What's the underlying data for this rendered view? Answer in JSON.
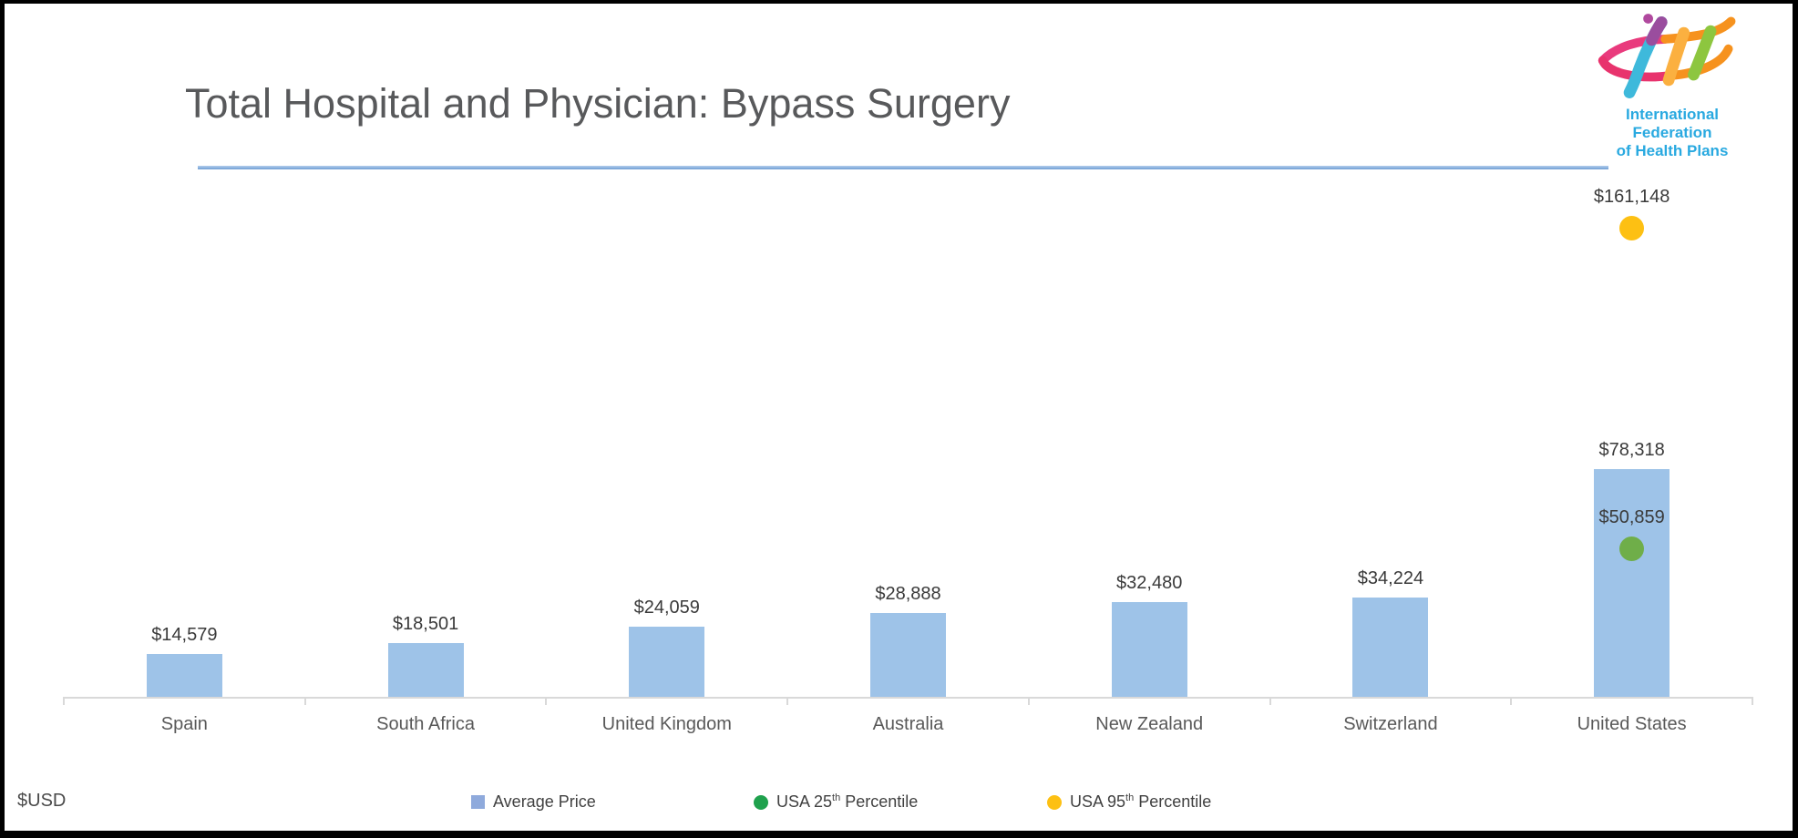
{
  "header": {
    "title": "Total Hospital and Physician: Bypass Surgery",
    "logo": {
      "line1": "International Federation",
      "line2": "of Health Plans"
    }
  },
  "footer": {
    "currency_note": "$USD"
  },
  "legend": {
    "position": "bottom",
    "items": [
      {
        "label": "Average Price",
        "marker": "square",
        "color": "#8faadc"
      },
      {
        "prefix": "USA 25",
        "sup": "th",
        "suffix": " Percentile",
        "marker": "circle",
        "color": "#1fa14d"
      },
      {
        "prefix": "USA 95",
        "sup": "th",
        "suffix": " Percentile",
        "marker": "circle",
        "color": "#fdc013"
      }
    ]
  },
  "chart_data": {
    "type": "bar",
    "title": "Total Hospital and Physician: Bypass Surgery",
    "ylabel": "$USD",
    "ylim": [
      0,
      175000
    ],
    "grid": false,
    "legend_position": "bottom",
    "value_label_format": "$#,##0",
    "categories": [
      "Spain",
      "South Africa",
      "United Kingdom",
      "Australia",
      "New Zealand",
      "Switzerland",
      "United States"
    ],
    "series": [
      {
        "name": "Average Price",
        "color": "#9ec3e8",
        "values": [
          14579,
          18501,
          24059,
          28888,
          32480,
          34224,
          78318
        ]
      }
    ],
    "scatter_points": [
      {
        "name": "USA 25th Percentile",
        "category": "United States",
        "value": 50859,
        "color": "#6fae49"
      },
      {
        "name": "USA 95th Percentile",
        "category": "United States",
        "value": 161148,
        "color": "#fdc013"
      }
    ]
  }
}
